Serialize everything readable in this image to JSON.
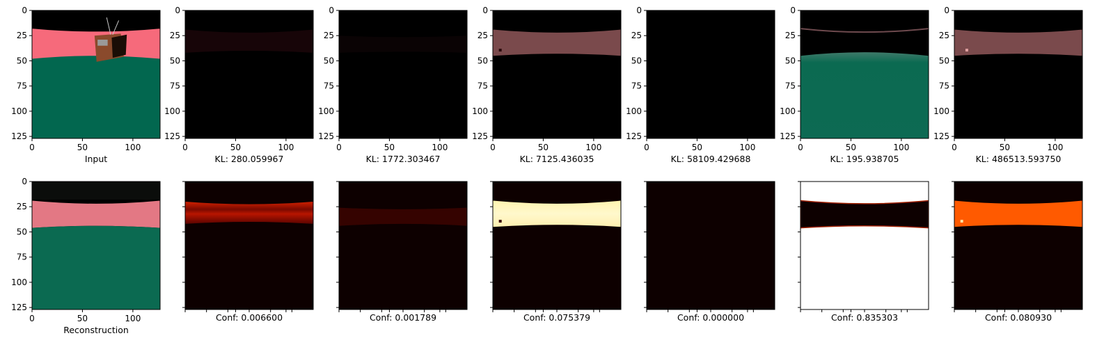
{
  "chart_data": [
    {
      "type": "image",
      "title": "",
      "xlabel": "Input",
      "xlim": [
        0,
        127
      ],
      "ylim": [
        127,
        0
      ],
      "x_ticks": [
        0,
        50,
        100
      ],
      "y_ticks": [
        0,
        25,
        50,
        75,
        100,
        125
      ],
      "content": "scene: black sky, pink horizon band (y 20-45), green ground, TV object with antenna"
    },
    {
      "type": "image",
      "title": "",
      "xlabel": "KL: 280.059967",
      "xlim": [
        0,
        127
      ],
      "ylim": [
        127,
        0
      ],
      "x_ticks": [
        0,
        50,
        100
      ],
      "y_ticks": [
        0,
        25,
        50,
        75,
        100,
        125
      ]
    },
    {
      "type": "image",
      "title": "",
      "xlabel": "KL: 1772.303467",
      "xlim": [
        0,
        127
      ],
      "ylim": [
        127,
        0
      ],
      "x_ticks": [
        0,
        50,
        100
      ],
      "y_ticks": [
        0,
        25,
        50,
        75,
        100,
        125
      ]
    },
    {
      "type": "image",
      "title": "",
      "xlabel": "KL: 7125.436035",
      "xlim": [
        0,
        127
      ],
      "ylim": [
        127,
        0
      ],
      "x_ticks": [
        0,
        50,
        100
      ],
      "y_ticks": [
        0,
        25,
        50,
        75,
        100,
        125
      ]
    },
    {
      "type": "image",
      "title": "",
      "xlabel": "KL: 58109.429688",
      "xlim": [
        0,
        127
      ],
      "ylim": [
        127,
        0
      ],
      "x_ticks": [
        0,
        50,
        100
      ],
      "y_ticks": [
        0,
        25,
        50,
        75,
        100,
        125
      ]
    },
    {
      "type": "image",
      "title": "",
      "xlabel": "KL: 195.938705",
      "xlim": [
        0,
        127
      ],
      "ylim": [
        127,
        0
      ],
      "x_ticks": [
        0,
        50,
        100
      ],
      "y_ticks": [
        0,
        25,
        50,
        75,
        100,
        125
      ]
    },
    {
      "type": "image",
      "title": "",
      "xlabel": "KL: 486513.593750",
      "xlim": [
        0,
        127
      ],
      "ylim": [
        127,
        0
      ],
      "x_ticks": [
        0,
        50,
        100
      ],
      "y_ticks": [
        0,
        25,
        50,
        75,
        100,
        125
      ]
    },
    {
      "type": "image",
      "title": "",
      "xlabel": "Reconstruction",
      "xlim": [
        0,
        127
      ],
      "ylim": [
        127,
        0
      ],
      "x_ticks": [
        0,
        50,
        100
      ],
      "y_ticks": [
        0,
        25,
        50,
        75,
        100,
        125
      ]
    },
    {
      "type": "heatmap",
      "title": "",
      "xlabel": "Conf: 0.006600",
      "colormap": "hot",
      "confidence": 0.0066,
      "x_ticks": [],
      "y_ticks": []
    },
    {
      "type": "heatmap",
      "title": "",
      "xlabel": "Conf: 0.001789",
      "colormap": "hot",
      "confidence": 0.001789,
      "x_ticks": [],
      "y_ticks": []
    },
    {
      "type": "heatmap",
      "title": "",
      "xlabel": "Conf: 0.075379",
      "colormap": "hot",
      "confidence": 0.075379,
      "x_ticks": [],
      "y_ticks": []
    },
    {
      "type": "heatmap",
      "title": "",
      "xlabel": "Conf: 0.000000",
      "colormap": "hot",
      "confidence": 0.0,
      "x_ticks": [],
      "y_ticks": []
    },
    {
      "type": "heatmap",
      "title": "",
      "xlabel": "Conf: 0.835303",
      "colormap": "hot",
      "confidence": 0.835303,
      "x_ticks": [],
      "y_ticks": []
    },
    {
      "type": "heatmap",
      "title": "",
      "xlabel": "Conf: 0.080930",
      "colormap": "hot",
      "confidence": 0.08093,
      "x_ticks": [],
      "y_ticks": []
    }
  ],
  "colors": {
    "sky": "#000000",
    "horizon_band": "#f66a7b",
    "ground": "#02674f",
    "tv_body": "#8a4a2c",
    "hot_dark": "#0d0000",
    "hot_red": "#c81a00",
    "hot_orange": "#ff5a00",
    "hot_pale": "#fff8cc",
    "white": "#ffffff"
  }
}
